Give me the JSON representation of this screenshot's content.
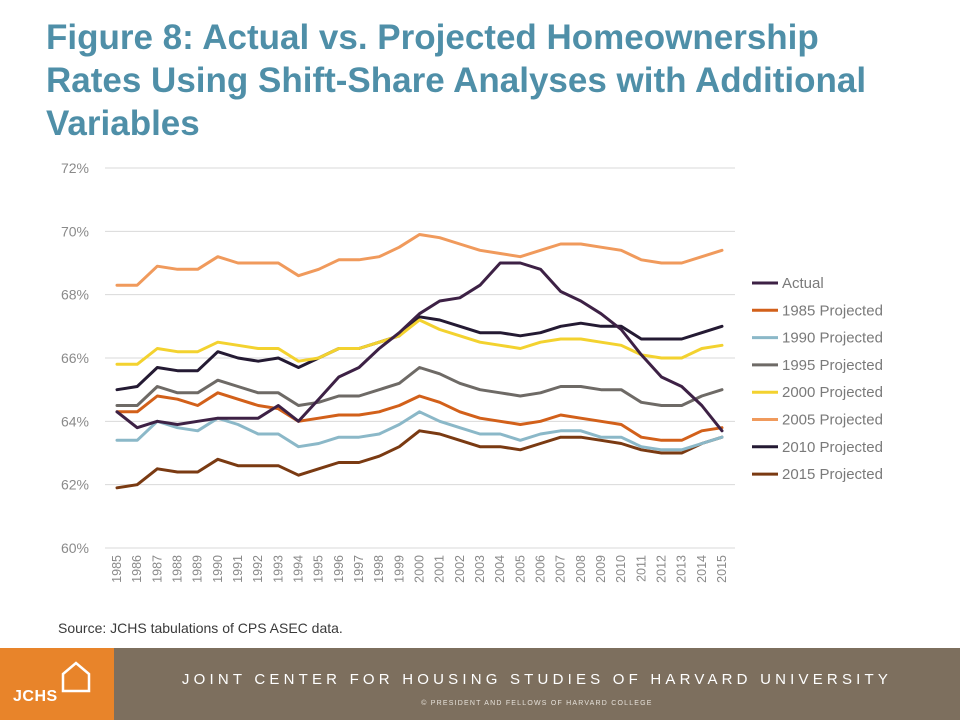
{
  "title_lines": [
    "Figure 8: Actual vs. Projected Homeownership",
    "Rates Using Shift-Share Analyses with Additional",
    "Variables"
  ],
  "source": "Source: JCHS tabulations of CPS ASEC data.",
  "footer": {
    "logo_text": "JCHS",
    "org_name": "JOINT CENTER FOR HOUSING STUDIES OF HARVARD UNIVERSITY",
    "copyright": "© PRESIDENT AND FELLOWS OF HARVARD COLLEGE",
    "logo_bg": "#e8842a",
    "bar_bg": "#7d6f5e"
  },
  "chart_data": {
    "type": "line",
    "title": "Figure 8: Actual vs. Projected Homeownership Rates Using Shift-Share Analyses with Additional Variables",
    "xlabel": "",
    "ylabel": "",
    "ylim": [
      60,
      72
    ],
    "yticks": [
      60,
      62,
      64,
      66,
      68,
      70,
      72
    ],
    "ytick_labels": [
      "60%",
      "62%",
      "64%",
      "66%",
      "68%",
      "70%",
      "72%"
    ],
    "grid": true,
    "legend_position": "right",
    "x": [
      "1985",
      "1986",
      "1987",
      "1988",
      "1989",
      "1990",
      "1991",
      "1992",
      "1993",
      "1994",
      "1995",
      "1996",
      "1997",
      "1998",
      "1999",
      "2000",
      "2001",
      "2002",
      "2003",
      "2004",
      "2005",
      "2006",
      "2007",
      "2008",
      "2009",
      "2010",
      "2011",
      "2012",
      "2013",
      "2014",
      "2015"
    ],
    "series": [
      {
        "name": "Actual",
        "color": "#3d2145",
        "values": [
          64.3,
          63.8,
          64.0,
          63.9,
          64.0,
          64.1,
          64.1,
          64.1,
          64.5,
          64.0,
          64.7,
          65.4,
          65.7,
          66.3,
          66.8,
          67.4,
          67.8,
          67.9,
          68.3,
          69.0,
          69.0,
          68.8,
          68.1,
          67.8,
          67.4,
          66.9,
          66.1,
          65.4,
          65.1,
          64.5,
          63.7
        ]
      },
      {
        "name": "1985 Projected",
        "color": "#d2601a",
        "values": [
          64.3,
          64.3,
          64.8,
          64.7,
          64.5,
          64.9,
          64.7,
          64.5,
          64.4,
          64.0,
          64.1,
          64.2,
          64.2,
          64.3,
          64.5,
          64.8,
          64.6,
          64.3,
          64.1,
          64.0,
          63.9,
          64.0,
          64.2,
          64.1,
          64.0,
          63.9,
          63.5,
          63.4,
          63.4,
          63.7,
          63.8
        ]
      },
      {
        "name": "1990 Projected",
        "color": "#8bb8c8",
        "values": [
          63.4,
          63.4,
          64.0,
          63.8,
          63.7,
          64.1,
          63.9,
          63.6,
          63.6,
          63.2,
          63.3,
          63.5,
          63.5,
          63.6,
          63.9,
          64.3,
          64.0,
          63.8,
          63.6,
          63.6,
          63.4,
          63.6,
          63.7,
          63.7,
          63.5,
          63.5,
          63.2,
          63.1,
          63.1,
          63.3,
          63.5
        ]
      },
      {
        "name": "1995 Projected",
        "color": "#6e6a66",
        "values": [
          64.5,
          64.5,
          65.1,
          64.9,
          64.9,
          65.3,
          65.1,
          64.9,
          64.9,
          64.5,
          64.6,
          64.8,
          64.8,
          65.0,
          65.2,
          65.7,
          65.5,
          65.2,
          65.0,
          64.9,
          64.8,
          64.9,
          65.1,
          65.1,
          65.0,
          65.0,
          64.6,
          64.5,
          64.5,
          64.8,
          65.0
        ]
      },
      {
        "name": "2000 Projected",
        "color": "#f3d22f",
        "values": [
          65.8,
          65.8,
          66.3,
          66.2,
          66.2,
          66.5,
          66.4,
          66.3,
          66.3,
          65.9,
          66.0,
          66.3,
          66.3,
          66.5,
          66.7,
          67.2,
          66.9,
          66.7,
          66.5,
          66.4,
          66.3,
          66.5,
          66.6,
          66.6,
          66.5,
          66.4,
          66.1,
          66.0,
          66.0,
          66.3,
          66.4
        ]
      },
      {
        "name": "2005 Projected",
        "color": "#f09a5c",
        "values": [
          68.3,
          68.3,
          68.9,
          68.8,
          68.8,
          69.2,
          69.0,
          69.0,
          69.0,
          68.6,
          68.8,
          69.1,
          69.1,
          69.2,
          69.5,
          69.9,
          69.8,
          69.6,
          69.4,
          69.3,
          69.2,
          69.4,
          69.6,
          69.6,
          69.5,
          69.4,
          69.1,
          69.0,
          69.0,
          69.2,
          69.4
        ]
      },
      {
        "name": "2010 Projected",
        "color": "#241a33",
        "values": [
          65.0,
          65.1,
          65.7,
          65.6,
          65.6,
          66.2,
          66.0,
          65.9,
          66.0,
          65.7,
          66.0,
          66.3,
          66.3,
          66.5,
          66.7,
          67.3,
          67.2,
          67.0,
          66.8,
          66.8,
          66.7,
          66.8,
          67.0,
          67.1,
          67.0,
          67.0,
          66.6,
          66.6,
          66.6,
          66.8,
          67.0
        ]
      },
      {
        "name": "2015 Projected",
        "color": "#7a3a12",
        "values": [
          61.9,
          62.0,
          62.5,
          62.4,
          62.4,
          62.8,
          62.6,
          62.6,
          62.6,
          62.3,
          62.5,
          62.7,
          62.7,
          62.9,
          63.2,
          63.7,
          63.6,
          63.4,
          63.2,
          63.2,
          63.1,
          63.3,
          63.5,
          63.5,
          63.4,
          63.3,
          63.1,
          63.0,
          63.0,
          63.3,
          63.5
        ]
      }
    ]
  }
}
